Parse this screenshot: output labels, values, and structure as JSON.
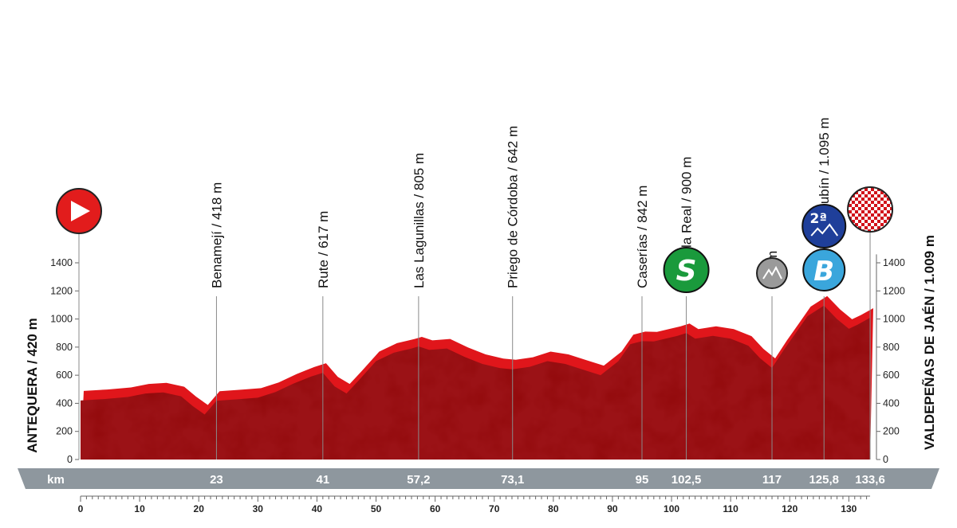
{
  "chart_data": {
    "type": "area",
    "start": "ANTEQUERA / 420 m",
    "finish": "VALDEPEÑAS DE JAÉN / 1.009 m",
    "km_label": "km",
    "xlim": [
      0,
      134
    ],
    "ylim": [
      0,
      1400
    ],
    "x_ticks": [
      0,
      10,
      20,
      30,
      40,
      50,
      60,
      70,
      80,
      90,
      100,
      110,
      120,
      130
    ],
    "y_ticks": [
      0,
      200,
      400,
      600,
      800,
      1000,
      1200,
      1400
    ],
    "profile": [
      [
        0,
        420
      ],
      [
        4,
        430
      ],
      [
        8,
        445
      ],
      [
        11,
        470
      ],
      [
        14,
        478
      ],
      [
        17,
        450
      ],
      [
        19,
        380
      ],
      [
        21,
        320
      ],
      [
        23,
        418
      ],
      [
        27,
        430
      ],
      [
        30,
        440
      ],
      [
        33,
        480
      ],
      [
        36,
        540
      ],
      [
        39,
        590
      ],
      [
        41,
        617
      ],
      [
        43,
        520
      ],
      [
        45,
        470
      ],
      [
        47,
        560
      ],
      [
        50,
        700
      ],
      [
        53,
        760
      ],
      [
        56,
        790
      ],
      [
        57.2,
        805
      ],
      [
        59,
        780
      ],
      [
        62,
        790
      ],
      [
        65,
        730
      ],
      [
        68,
        680
      ],
      [
        71,
        650
      ],
      [
        73.1,
        642
      ],
      [
        76,
        660
      ],
      [
        79,
        700
      ],
      [
        82,
        680
      ],
      [
        85,
        640
      ],
      [
        88,
        600
      ],
      [
        91,
        700
      ],
      [
        93,
        820
      ],
      [
        95,
        842
      ],
      [
        97,
        840
      ],
      [
        99,
        860
      ],
      [
        101,
        880
      ],
      [
        102.5,
        900
      ],
      [
        104,
        860
      ],
      [
        107,
        880
      ],
      [
        110,
        860
      ],
      [
        113,
        810
      ],
      [
        115,
        720
      ],
      [
        117,
        652
      ],
      [
        119,
        780
      ],
      [
        121,
        900
      ],
      [
        123,
        1020
      ],
      [
        125.8,
        1095
      ],
      [
        128,
        1000
      ],
      [
        130,
        930
      ],
      [
        131.5,
        960
      ],
      [
        133.6,
        1009
      ]
    ],
    "points": [
      {
        "name": "Benamejí / 418 m",
        "km": 23,
        "km_label": "23",
        "alt": 418
      },
      {
        "name": "Rute / 617 m",
        "km": 41,
        "km_label": "41",
        "alt": 617
      },
      {
        "name": "Las Lagunillas / 805 m",
        "km": 57.2,
        "km_label": "57,2",
        "alt": 805
      },
      {
        "name": "Priego de Córdoba / 642 m",
        "km": 73.1,
        "km_label": "73,1",
        "alt": 642
      },
      {
        "name": "Caserías / 842 m",
        "km": 95,
        "km_label": "95",
        "alt": 842
      },
      {
        "name": "Alcalá la Real / 900 m",
        "km": 102.5,
        "km_label": "102,5",
        "alt": 900
      },
      {
        "name": "652 m",
        "km": 117,
        "km_label": "117",
        "alt": 652
      },
      {
        "name": "Puerto de Locubín / 1.095 m",
        "km": 125.8,
        "km_label": "125,8",
        "alt": 1095
      },
      {
        "name": "",
        "km": 133.6,
        "km_label": "133,6",
        "alt": 1009
      }
    ],
    "badges": {
      "sprint": "S",
      "bonus": "B",
      "climb_category": "2ª"
    },
    "colors": {
      "profile_fill": "#9b1216",
      "profile_top": "#e0161b",
      "sprint_badge": "#1a9a3c",
      "bonus_badge": "#3aa6dc",
      "climb_badge": "#1f3f9a",
      "start_badge": "#e21c1c",
      "km_bar": "#8e979e"
    }
  }
}
